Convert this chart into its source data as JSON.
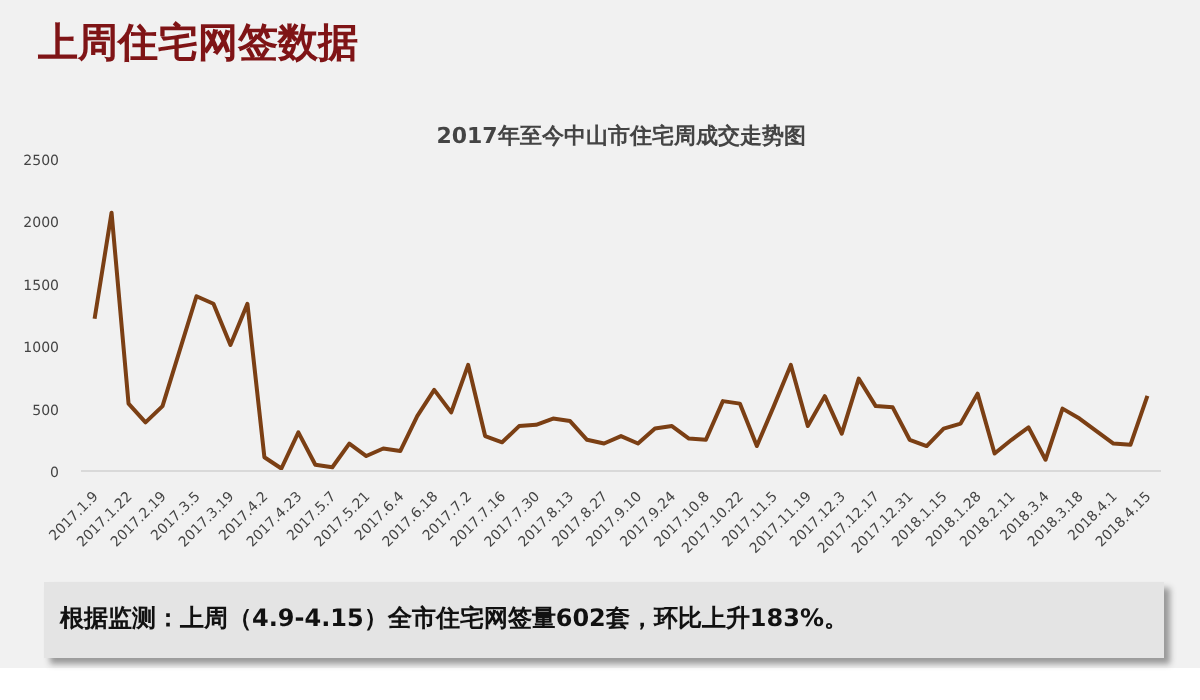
{
  "chart_data": {
    "type": "line",
    "title": "上周住宅网签数据",
    "subtitle": "2017年至今中山市住宅周成交走势图",
    "categories": [
      "2017.1.9",
      null,
      "2017.1.22",
      null,
      "2017.2.19",
      null,
      "2017.3.5",
      null,
      "2017.3.19",
      null,
      "2017.4.2",
      null,
      "2017.4.23",
      null,
      "2017.5.7",
      null,
      "2017.5.21",
      null,
      "2017.6.4",
      null,
      "2017.6.18",
      null,
      "2017.7.2",
      null,
      "2017.7.16",
      null,
      "2017.7.30",
      null,
      "2017.8.13",
      null,
      "2017.8.27",
      null,
      "2017.9.10",
      null,
      "2017.9.24",
      null,
      "2017.10.8",
      null,
      "2017.10.22",
      null,
      "2017.11.5",
      null,
      "2017.11.19",
      null,
      "2017.12.3",
      null,
      "2017.12.17",
      null,
      "2017.12.31",
      null,
      "2018.1.15",
      null,
      "2018.1.28",
      null,
      "2018.2.11",
      null,
      "2018.3.4",
      null,
      "2018.3.18",
      null,
      "2018.4.1",
      null,
      "2018.4.15"
    ],
    "series": [
      {
        "color": "#7b3f14",
        "values": [
          1220,
          2070,
          540,
          390,
          520,
          960,
          1400,
          1340,
          1010,
          1340,
          110,
          20,
          310,
          50,
          30,
          220,
          120,
          180,
          160,
          440,
          650,
          470,
          850,
          280,
          230,
          360,
          370,
          420,
          400,
          250,
          220,
          280,
          220,
          340,
          360,
          260,
          250,
          560,
          540,
          200,
          520,
          850,
          360,
          600,
          300,
          740,
          520,
          510,
          250,
          200,
          340,
          380,
          620,
          140,
          250,
          350,
          90,
          500,
          420,
          320,
          220,
          210,
          602
        ]
      }
    ],
    "ylim": [
      0,
      2500
    ],
    "yticks": [
      0,
      500,
      1000,
      1500,
      2000,
      2500
    ],
    "grid": false,
    "marker": "none",
    "line_style": "solid",
    "annotations": [
      "根据监测：上周（4.9-4.15）全市住宅网签量602套，环比上升183%。"
    ]
  }
}
